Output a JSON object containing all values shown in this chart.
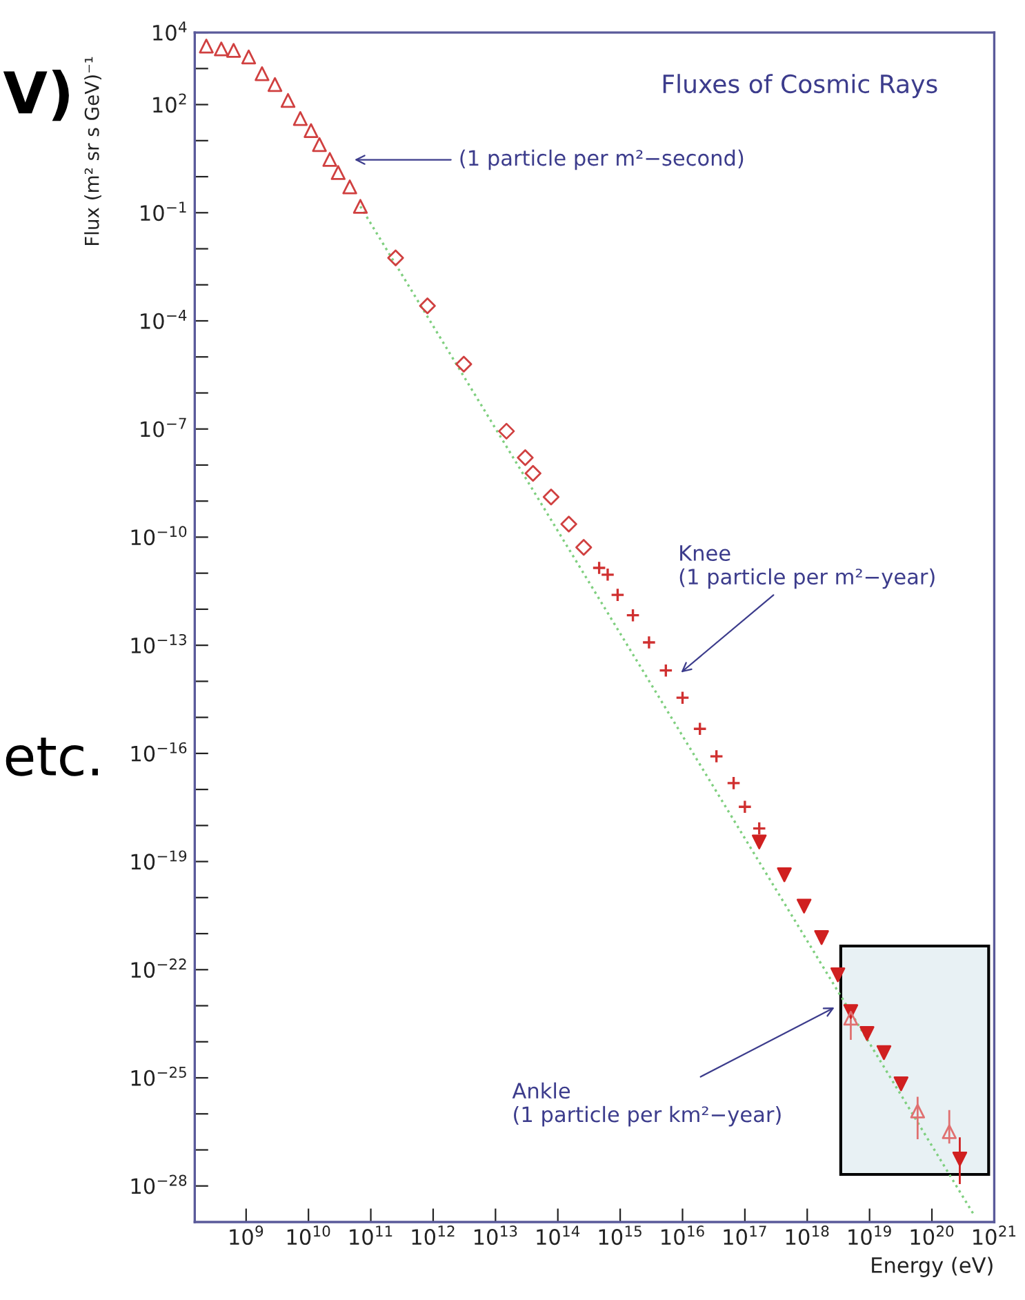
{
  "chart_data": {
    "type": "scatter",
    "title": "Fluxes of Cosmic Rays",
    "xlabel": "Energy (eV)",
    "ylabel": "Flux (m² sr s GeV)⁻¹",
    "log": "xy",
    "xlim": [
      150000000.0,
      1e+21
    ],
    "ylim": [
      1e-29,
      10000.0
    ],
    "xticks": [
      {
        "value": 1000000000.0,
        "label": "10$^{9}$"
      },
      {
        "value": 10000000000.0,
        "label": "10$^{10}$"
      },
      {
        "value": 100000000000.0,
        "label": "10$^{11}$"
      },
      {
        "value": 1000000000000.0,
        "label": "10$^{12}$"
      },
      {
        "value": 10000000000000.0,
        "label": "10$^{13}$"
      },
      {
        "value": 100000000000000.0,
        "label": "10$^{14}$"
      },
      {
        "value": 1000000000000000.0,
        "label": "10$^{15}$"
      },
      {
        "value": 1e+16,
        "label": "10$^{16}$"
      },
      {
        "value": 1e+17,
        "label": "10$^{17}$"
      },
      {
        "value": 1e+18,
        "label": "10$^{18}$"
      },
      {
        "value": 1e+19,
        "label": "10$^{19}$"
      },
      {
        "value": 1e+20,
        "label": "10$^{20}$"
      },
      {
        "value": 1e+21,
        "label": "10$^{21}$"
      }
    ],
    "yticks": [
      {
        "value": 10000.0,
        "label": "10$^{4}$"
      },
      {
        "value": 1000.0,
        "label": null
      },
      {
        "value": 100.0,
        "label": "10$^{2}$"
      },
      {
        "value": 10.0,
        "label": null
      },
      {
        "value": 1.0,
        "label": null
      },
      {
        "value": 0.1,
        "label": "10$^{−1}$"
      },
      {
        "value": 0.01,
        "label": null
      },
      {
        "value": 0.001,
        "label": null
      },
      {
        "value": 0.0001,
        "label": "10$^{−4}$"
      },
      {
        "value": 1e-05,
        "label": null
      },
      {
        "value": 1e-06,
        "label": null
      },
      {
        "value": 1e-07,
        "label": "10$^{−7}$"
      },
      {
        "value": 1e-08,
        "label": null
      },
      {
        "value": 1e-09,
        "label": null
      },
      {
        "value": 1e-10,
        "label": "10$^{−10}$"
      },
      {
        "value": 1e-11,
        "label": null
      },
      {
        "value": 1e-12,
        "label": null
      },
      {
        "value": 1e-13,
        "label": "10$^{−13}$"
      },
      {
        "value": 1e-14,
        "label": null
      },
      {
        "value": 1e-15,
        "label": null
      },
      {
        "value": 1e-16,
        "label": "10$^{−16}$"
      },
      {
        "value": 1e-17,
        "label": null
      },
      {
        "value": 1e-18,
        "label": null
      },
      {
        "value": 1e-19,
        "label": "10$^{−19}$"
      },
      {
        "value": 1e-20,
        "label": null
      },
      {
        "value": 1e-21,
        "label": null
      },
      {
        "value": 1e-22,
        "label": "10$^{−22}$"
      },
      {
        "value": 1e-23,
        "label": null
      },
      {
        "value": 1e-24,
        "label": null
      },
      {
        "value": 1e-25,
        "label": "10$^{−25}$"
      },
      {
        "value": 1e-26,
        "label": null
      },
      {
        "value": 1e-27,
        "label": null
      },
      {
        "value": 1e-28,
        "label": "10$^{−28}$"
      }
    ],
    "grid": false,
    "series": [
      {
        "type": "line",
        "color": "#7fcf7f",
        "marker": "none",
        "line_style": "dotted",
        "x": [
          68000000000.0,
          4.6e+20
        ],
        "values": [
          0.15,
          1.7e-29
        ]
      },
      {
        "color": "#d04040",
        "marker": "triangle",
        "x": [
          230000000.0,
          400000000.0,
          630000000.0,
          1100000000.0,
          1800000000.0,
          2900000000.0,
          4700000000.0,
          7400000000.0,
          11000000000.0,
          15000000000.0,
          22000000000.0,
          30000000000.0,
          46000000000.0,
          68000000000.0
        ],
        "values": [
          4200.0,
          3500.0,
          3200.0,
          2100.0,
          720.0,
          360.0,
          130.0,
          41,
          19,
          7.8,
          3.0,
          1.3,
          0.52,
          0.15
        ]
      },
      {
        "color": "#d04040",
        "marker": "diamond",
        "x": [
          250000000000.0,
          810000000000.0,
          3100000000000.0,
          15000000000000.0,
          30000000000000.0,
          40000000000000.0,
          78000000000000.0,
          150000000000000.0,
          260000000000000.0
        ],
        "values": [
          0.0056,
          0.00026,
          6.3e-06,
          8.7e-08,
          1.6e-08,
          5.9e-09,
          1.3e-09,
          2.3e-10,
          5.2e-11
        ]
      },
      {
        "color": "#d03030",
        "marker": "cross",
        "x": [
          460000000000000.0,
          630000000000000.0,
          910000000000000.0,
          1600000000000000.0,
          2900000000000000.0,
          5400000000000000.0,
          1e+16,
          1.9e+16,
          3.5e+16,
          6.6e+16,
          1e+17,
          1.7e+17
        ],
        "values": [
          1.4e-11,
          9.1e-12,
          2.5e-12,
          6.8e-13,
          1.2e-13,
          2e-14,
          3.5e-15,
          4.8e-16,
          8.3e-17,
          1.5e-17,
          3.3e-18,
          8.3e-19
        ]
      },
      {
        "color": "#d02020",
        "marker": "triangle_down",
        "x": [
          1.7e+17,
          4.3e+17,
          8.9e+17,
          1.7e+18,
          3.1e+18,
          5e+18,
          9.1e+18,
          1.7e+19,
          3.2e+19,
          2.8e+20
        ],
        "values": [
          3.5e-19,
          4.3e-20,
          5.8e-21,
          7.8e-22,
          7.2e-23,
          6.9e-24,
          1.7e-24,
          5e-25,
          6.8e-26,
          5.6e-28
        ],
        "errors": [
          null,
          null,
          null,
          null,
          null,
          null,
          null,
          null,
          null,
          [
            1.2e-28,
            2.1e-27
          ]
        ]
      },
      {
        "color": "#e07070",
        "marker": "triangle",
        "x": [
          5e+18,
          5.9e+19,
          1.9e+20
        ],
        "values": [
          4.5e-24,
          1.2e-26,
          3.2e-27
        ],
        "errors": [
          [
            1.2e-24,
            1e-23
          ],
          [
            2.1e-27,
            2.8e-26
          ],
          [
            1.6e-27,
            1.2e-26
          ]
        ]
      }
    ],
    "annotations": [
      "(1 particle per m²−second)",
      {
        "text": "Knee\n(1 particle per m²−year)",
        "x": 8500000000000000.0,
        "y": 1.5e-14
      },
      {
        "text": "Ankle\n(1 particle per km²−year)",
        "x": 3.1e+18,
        "y": 1e-23
      },
      "V)",
      "etc."
    ]
  }
}
